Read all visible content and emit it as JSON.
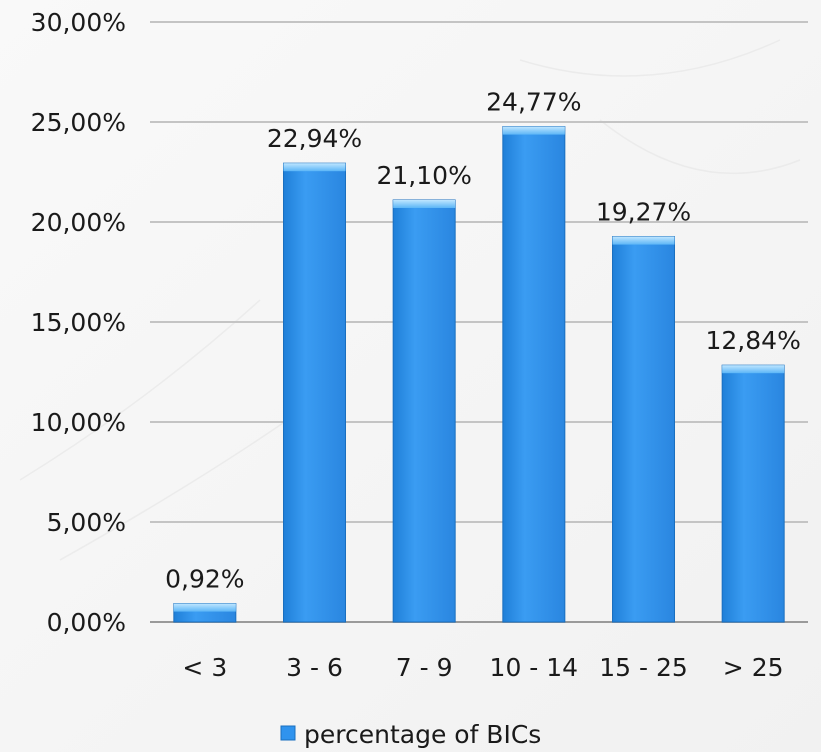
{
  "chart_data": {
    "type": "bar",
    "categories": [
      "< 3",
      "3 - 6",
      "7 - 9",
      "10 - 14",
      "15 - 25",
      "> 25"
    ],
    "series": [
      {
        "name": "percentage of BICs",
        "values": [
          0.92,
          22.94,
          21.1,
          24.77,
          19.27,
          12.84
        ],
        "labels": [
          "0,92%",
          "22,94%",
          "21,10%",
          "24,77%",
          "19,27%",
          "12,84%"
        ],
        "color": "#2f93ee"
      }
    ],
    "y_ticks": [
      0,
      5,
      10,
      15,
      20,
      25,
      30
    ],
    "y_tick_labels": [
      "0,00%",
      "5,00%",
      "10,00%",
      "15,00%",
      "20,00%",
      "25,00%",
      "30,00%"
    ],
    "ylim": [
      0,
      30
    ],
    "grid": true,
    "legend": {
      "position": "bottom",
      "label": "percentage of BICs"
    }
  }
}
